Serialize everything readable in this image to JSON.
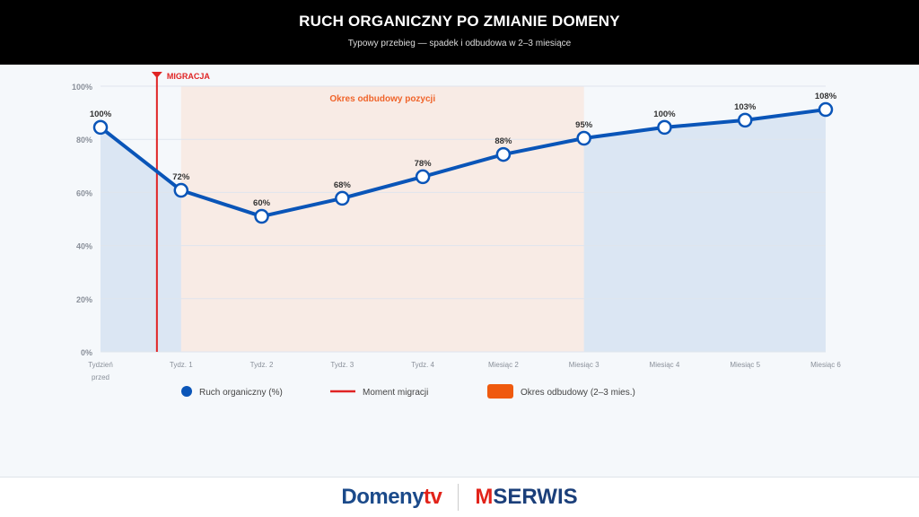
{
  "header": {
    "title": "RUCH ORGANICZNY PO ZMIANIE DOMENY",
    "subtitle": "Typowy przebieg — spadek i odbudowa w 2–3 miesiące"
  },
  "chart_data": {
    "type": "line",
    "categories": [
      "Tydzień przed",
      "Tydz. 1",
      "Tydz. 2",
      "Tydz. 3",
      "Tydz. 4",
      "Miesiąc 2",
      "Miesiąc 3",
      "Miesiąc 4",
      "Miesiąc 5",
      "Miesiąc 6"
    ],
    "series": [
      {
        "name": "Ruch organiczny (%)",
        "values": [
          84.5,
          60.8,
          51,
          57.8,
          65.9,
          74.3,
          80.4,
          84.5,
          87.2,
          91.2
        ],
        "labels": [
          "100%",
          "72%",
          "60%",
          "68%",
          "78%",
          "88%",
          "95%",
          "100%",
          "103%",
          "108%"
        ],
        "color": "#0a55b8"
      }
    ],
    "ylim": [
      0,
      100
    ],
    "yticks": [
      "0%",
      "20%",
      "40%",
      "60%",
      "80%",
      "100%"
    ],
    "grid": true,
    "migration": {
      "label": "MIGRACJA",
      "position": "between Tydzień przed and Tydz. 1",
      "color": "#e02424"
    },
    "recovery_band": {
      "label": "Okres odbudowy pozycji",
      "from": "Tydz. 1",
      "to": "Miesiąc 3",
      "color": "#f4622a"
    },
    "legend": {
      "placement": "bottom",
      "items": [
        "Ruch organiczny (%)",
        "Moment migracji",
        "Okres odbudowy (2–3 mies.)"
      ]
    }
  },
  "footer": {
    "logo1": "Domeny",
    "logo1_tv": "tv",
    "logo2_m": "M",
    "logo2": "SERWIS"
  }
}
